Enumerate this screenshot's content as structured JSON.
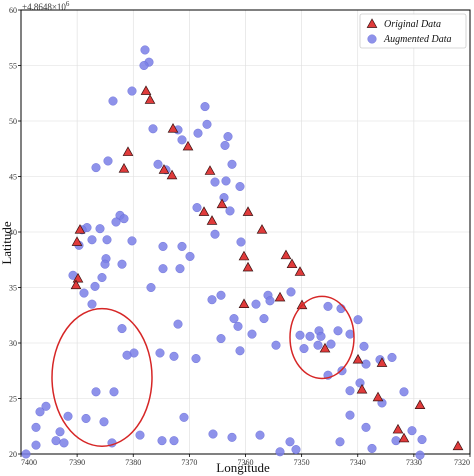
{
  "chart_data": {
    "type": "scatter",
    "xlabel": "Longitude",
    "ylabel": "Latitude",
    "y_offset_label": "+4.8648×10",
    "y_offset_exponent": "6",
    "x_tick_labels": [
      "7400",
      "7390",
      "7380",
      "7370",
      "7360",
      "7350",
      "7340",
      "7330",
      "7320"
    ],
    "y_tick_labels": [
      "20",
      "25",
      "30",
      "35",
      "40",
      "45",
      "50",
      "55",
      "60"
    ],
    "xlim": [
      0,
      474
    ],
    "ylim": [
      20,
      60
    ],
    "grid": true,
    "legend": {
      "position": "top-right"
    },
    "series": [
      {
        "name": "Original Data",
        "marker": "triangle",
        "color": "#e03b3b",
        "points": [
          [
            78,
            35.8
          ],
          [
            76,
            35.2
          ],
          [
            80,
            40.2
          ],
          [
            77,
            39.1
          ],
          [
            128,
            47.2
          ],
          [
            124,
            45.7
          ],
          [
            146,
            52.7
          ],
          [
            150,
            51.9
          ],
          [
            173,
            49.3
          ],
          [
            188,
            47.7
          ],
          [
            164,
            45.6
          ],
          [
            172,
            45.1
          ],
          [
            210,
            45.5
          ],
          [
            212,
            41
          ],
          [
            204,
            41.8
          ],
          [
            222,
            42.5
          ],
          [
            248,
            41.8
          ],
          [
            262,
            40.2
          ],
          [
            286,
            37.9
          ],
          [
            292,
            37.1
          ],
          [
            300,
            36.4
          ],
          [
            244,
            37.8
          ],
          [
            248,
            36.8
          ],
          [
            244,
            33.5
          ],
          [
            302,
            33.4
          ],
          [
            280,
            34.1
          ],
          [
            325,
            29.5
          ],
          [
            358,
            28.5
          ],
          [
            382,
            28.2
          ],
          [
            362,
            25.8
          ],
          [
            378,
            25.1
          ],
          [
            398,
            22.2
          ],
          [
            404,
            21.4
          ],
          [
            420,
            24.4
          ],
          [
            458,
            20.7
          ]
        ]
      },
      {
        "name": "Augmented Data",
        "marker": "circle",
        "color": "#7a7fe6",
        "points": [
          [
            145,
            56.4
          ],
          [
            149,
            55.3
          ],
          [
            144,
            55
          ],
          [
            132,
            52.7
          ],
          [
            113,
            51.8
          ],
          [
            153,
            49.3
          ],
          [
            178,
            49.2
          ],
          [
            182,
            48.3
          ],
          [
            205,
            51.3
          ],
          [
            207,
            49.7
          ],
          [
            198,
            48.9
          ],
          [
            228,
            48.6
          ],
          [
            225,
            47.8
          ],
          [
            108,
            46.4
          ],
          [
            96,
            45.8
          ],
          [
            158,
            46.1
          ],
          [
            166,
            45.6
          ],
          [
            232,
            46.1
          ],
          [
            215,
            44.5
          ],
          [
            226,
            44.6
          ],
          [
            240,
            44.1
          ],
          [
            224,
            43.1
          ],
          [
            197,
            42.2
          ],
          [
            230,
            41.9
          ],
          [
            120,
            41.5
          ],
          [
            124,
            41.2
          ],
          [
            116,
            40.9
          ],
          [
            87,
            40.4
          ],
          [
            100,
            40.3
          ],
          [
            82,
            40.2
          ],
          [
            107,
            39.3
          ],
          [
            92,
            39.3
          ],
          [
            132,
            39.2
          ],
          [
            79,
            38.8
          ],
          [
            163,
            38.7
          ],
          [
            182,
            38.7
          ],
          [
            190,
            37.8
          ],
          [
            163,
            36.7
          ],
          [
            241,
            39.1
          ],
          [
            215,
            39.8
          ],
          [
            106,
            37.6
          ],
          [
            105,
            37.1
          ],
          [
            122,
            37.1
          ],
          [
            180,
            36.7
          ],
          [
            102,
            35.9
          ],
          [
            95,
            35.1
          ],
          [
            151,
            35
          ],
          [
            73,
            36.1
          ],
          [
            84,
            34.5
          ],
          [
            92,
            33.5
          ],
          [
            221,
            34.3
          ],
          [
            212,
            33.9
          ],
          [
            268,
            34.3
          ],
          [
            256,
            33.5
          ],
          [
            270,
            33.8
          ],
          [
            234,
            32.2
          ],
          [
            264,
            32.2
          ],
          [
            291,
            34.6
          ],
          [
            328,
            33.3
          ],
          [
            341,
            33.1
          ],
          [
            178,
            31.7
          ],
          [
            238,
            31.5
          ],
          [
            122,
            31.3
          ],
          [
            252,
            30.8
          ],
          [
            221,
            30.4
          ],
          [
            276,
            29.8
          ],
          [
            300,
            30.7
          ],
          [
            310,
            30.6
          ],
          [
            319,
            31.1
          ],
          [
            304,
            29.5
          ],
          [
            321,
            30.6
          ],
          [
            331,
            29.9
          ],
          [
            318,
            29.8
          ],
          [
            338,
            31.1
          ],
          [
            350,
            30.8
          ],
          [
            358,
            32.1
          ],
          [
            364,
            29.7
          ],
          [
            134,
            29.1
          ],
          [
            160,
            29.1
          ],
          [
            174,
            28.8
          ],
          [
            196,
            28.6
          ],
          [
            127,
            28.9
          ],
          [
            240,
            29.3
          ],
          [
            366,
            28.1
          ],
          [
            380,
            28.5
          ],
          [
            392,
            28.7
          ],
          [
            342,
            27.5
          ],
          [
            328,
            27.1
          ],
          [
            360,
            26.4
          ],
          [
            350,
            25.7
          ],
          [
            382,
            24.6
          ],
          [
            404,
            25.6
          ],
          [
            96,
            25.6
          ],
          [
            114,
            25.6
          ],
          [
            46,
            24.3
          ],
          [
            40,
            23.8
          ],
          [
            68,
            23.4
          ],
          [
            86,
            23.2
          ],
          [
            104,
            22.9
          ],
          [
            184,
            23.3
          ],
          [
            350,
            23.5
          ],
          [
            366,
            22.4
          ],
          [
            412,
            22.1
          ],
          [
            36,
            22.4
          ],
          [
            60,
            22
          ],
          [
            56,
            21.2
          ],
          [
            64,
            21
          ],
          [
            112,
            21
          ],
          [
            140,
            21.7
          ],
          [
            162,
            21.2
          ],
          [
            174,
            21.2
          ],
          [
            213,
            21.8
          ],
          [
            232,
            21.5
          ],
          [
            260,
            21.7
          ],
          [
            290,
            21.1
          ],
          [
            340,
            21.1
          ],
          [
            396,
            21.2
          ],
          [
            422,
            21.3
          ],
          [
            36,
            20.8
          ],
          [
            26,
            20
          ],
          [
            280,
            20.2
          ],
          [
            296,
            20.4
          ],
          [
            372,
            20.5
          ],
          [
            420,
            19.9
          ]
        ]
      }
    ],
    "annotations": [
      {
        "shape": "ellipse",
        "color": "#d62626",
        "cx": 102,
        "cy": 26.9,
        "rx": 50,
        "ry_data": 6.2
      },
      {
        "shape": "ellipse",
        "color": "#d62626",
        "cx": 322,
        "cy": 30.5,
        "rx": 32,
        "ry_data": 3.7
      }
    ]
  }
}
